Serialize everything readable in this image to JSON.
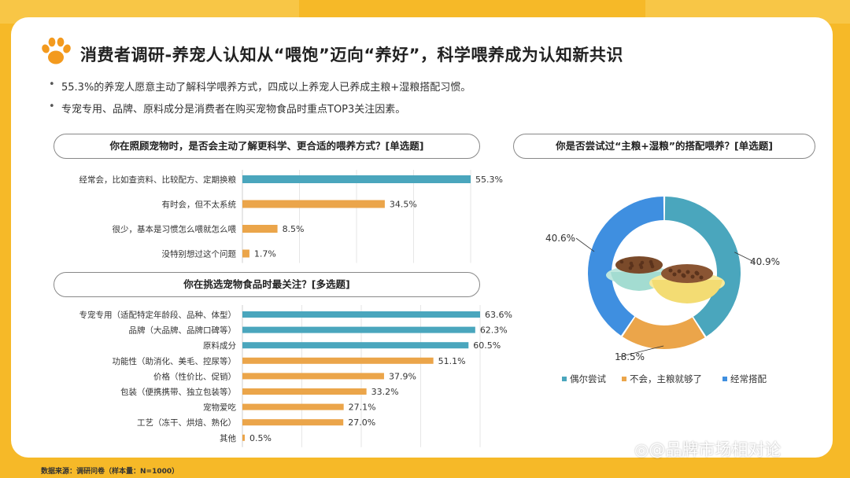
{
  "title": "消费者调研-养宠人认知从“喂饱”迈向“养好”，科学喂养成为认知新共识",
  "bullets": [
    "55.3%的养宠人愿意主动了解科学喂养方式，四成以上养宠人已养成主粮+湿粮搭配习惯。",
    "专宠专用、品牌、原料成分是消费者在购买宠物食品时重点TOP3关注因素。"
  ],
  "footer": "数据来源：调研问卷（样本量：N=1000）",
  "watermark": "品牌市场相对论",
  "colors": {
    "teal": "#4aa6bd",
    "orange": "#eba54a",
    "blue": "#3f8fe0",
    "brand": "#f6b928"
  },
  "chart_data": [
    {
      "type": "bar",
      "orientation": "horizontal",
      "title": "你在照顾宠物时，是否会主动了解更科学、更合适的喂养方式？[单选题]",
      "categories": [
        "经常会，比如查资料、比较配方、定期换粮",
        "有时会，但不太系统",
        "很少，基本是习惯怎么喂就怎么喂",
        "没特别想过这个问题"
      ],
      "values": [
        55.3,
        34.5,
        8.5,
        1.7
      ],
      "labels": [
        "55.3%",
        "34.5%",
        "8.5%",
        "1.7%"
      ],
      "bar_colors": [
        "#4aa6bd",
        "#eba54a",
        "#eba54a",
        "#eba54a"
      ],
      "xlim": [
        0,
        55.3
      ]
    },
    {
      "type": "bar",
      "orientation": "horizontal",
      "title": "你在挑选宠物食品时最关注？[多选题]",
      "categories": [
        "专宠专用（适配特定年龄段、品种、体型）",
        "品牌（大品牌、品牌口碑等）",
        "原料成分",
        "功能性（助消化、美毛、控尿等）",
        "价格（性价比、促销）",
        "包装（便携携带、独立包装等）",
        "宠物爱吃",
        "工艺（冻干、烘焙、熟化）",
        "其他"
      ],
      "values": [
        63.6,
        62.3,
        60.5,
        51.1,
        37.9,
        33.2,
        27.1,
        27.0,
        0.5
      ],
      "labels": [
        "63.6%",
        "62.3%",
        "60.5%",
        "51.1%",
        "37.9%",
        "33.2%",
        "27.1%",
        "27.0%",
        "0.5%"
      ],
      "bar_colors": [
        "#4aa6bd",
        "#4aa6bd",
        "#4aa6bd",
        "#eba54a",
        "#eba54a",
        "#eba54a",
        "#eba54a",
        "#eba54a",
        "#eba54a"
      ],
      "xlim": [
        0,
        63.6
      ]
    },
    {
      "type": "pie",
      "donut": true,
      "title": "你是否尝试过“主粮+湿粮”的搭配喂养？[单选题]",
      "slices": [
        {
          "name": "偶尔尝试",
          "value": 40.9,
          "label": "40.9%",
          "color": "#4aa6bd"
        },
        {
          "name": "不会，主粮就够了",
          "value": 18.5,
          "label": "18.5%",
          "color": "#eba54a"
        },
        {
          "name": "经常搭配",
          "value": 40.6,
          "label": "40.6%",
          "color": "#3f8fe0"
        }
      ],
      "legend_position": "bottom"
    }
  ]
}
